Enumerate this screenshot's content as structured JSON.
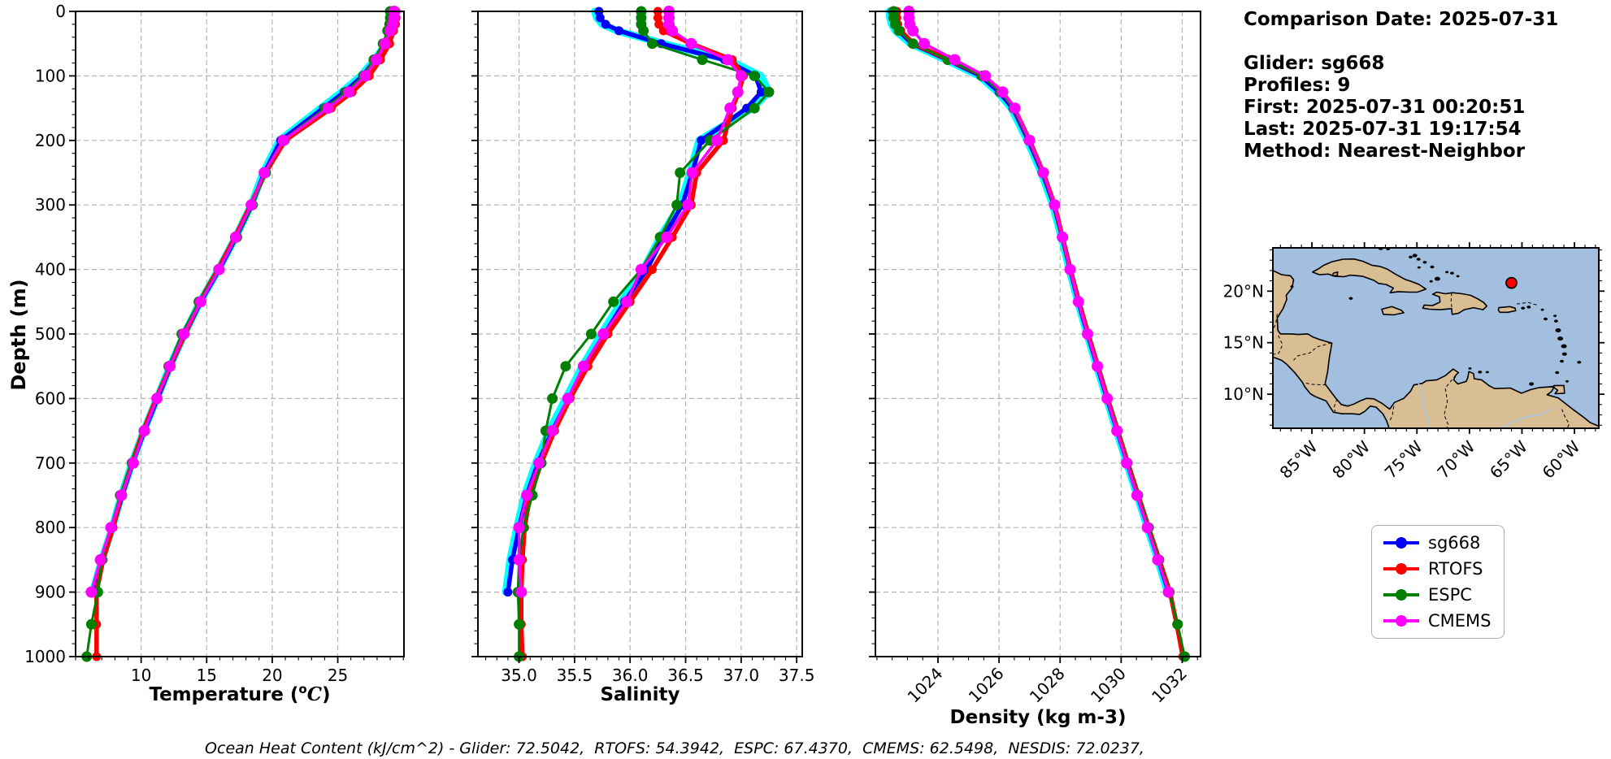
{
  "depth_axis_label": "Depth (m)",
  "info": {
    "lines": [
      "Comparison Date: 2025-07-31",
      "",
      "Glider: sg668",
      "Profiles: 9",
      "First: 2025-07-31 00:20:51",
      "Last: 2025-07-31 19:17:54",
      "Method: Nearest-Neighbor"
    ]
  },
  "footer": {
    "text": "Ocean Heat Content (kJ/cm^2) - Glider: 72.5042,  RTOFS: 54.3942,  ESPC: 67.4370,  CMEMS: 62.5498,  NESDIS: 72.0237,"
  },
  "legend": {
    "items": [
      {
        "label": "sg668",
        "color": "#0000ff"
      },
      {
        "label": "RTOFS",
        "color": "#ff0000"
      },
      {
        "label": "ESPC",
        "color": "#008000"
      },
      {
        "label": "CMEMS",
        "color": "#ff00ff"
      }
    ]
  },
  "depth_grids": {
    "glider": [
      0,
      10,
      20,
      30,
      50,
      75,
      100,
      125,
      150,
      200,
      250,
      300,
      350,
      400,
      450,
      500,
      550,
      600,
      650,
      700,
      750,
      800,
      850,
      900
    ],
    "model": [
      0,
      10,
      20,
      30,
      50,
      75,
      100,
      125,
      150,
      200,
      250,
      300,
      350,
      400,
      450,
      500,
      550,
      600,
      650,
      700,
      750,
      800,
      850,
      900,
      950,
      1000
    ]
  },
  "chart_data": [
    {
      "id": "temperature",
      "type": "line",
      "xlabel": "Temperature (°C)",
      "xlabel_parts": [
        {
          "t": "Temperature ("
        },
        {
          "t": "o",
          "style": "sup"
        },
        {
          "t": "C",
          "style": "it"
        },
        {
          "t": ")"
        }
      ],
      "ylabel": "Depth (m)",
      "xlim": [
        5.0,
        30.05
      ],
      "ylim": [
        0,
        1000
      ],
      "xticks": [
        10,
        15,
        20,
        25
      ],
      "xtick_labels": [
        "10",
        "15",
        "20",
        "25"
      ],
      "xtick_rotate": false,
      "xminor_step": 1,
      "yticks": [
        0,
        100,
        200,
        300,
        400,
        500,
        600,
        700,
        800,
        900,
        1000
      ],
      "ytick_labels": [
        "0",
        "100",
        "200",
        "300",
        "400",
        "500",
        "600",
        "700",
        "800",
        "900",
        "1000"
      ],
      "yminor_step": 20,
      "show_ytick_labels": true,
      "grid": true,
      "series": [
        {
          "name": "sg668-raw",
          "in_legend": false,
          "color": "#00ffff",
          "lw": 9,
          "mr": 0,
          "depth_grid": "glider",
          "values": [
            29.4,
            29.38,
            29.3,
            29.1,
            28.7,
            27.8,
            26.75,
            25.3,
            23.7,
            20.55,
            19.3,
            18.4,
            17.2,
            15.9,
            14.5,
            13.3,
            12.2,
            11.2,
            10.2,
            9.3,
            8.5,
            7.8,
            7.0,
            6.3
          ]
        },
        {
          "name": "sg668",
          "in_legend": true,
          "color": "#0000ff",
          "lw": 5.5,
          "mr": 5.5,
          "depth_grid": "glider",
          "values": [
            29.35,
            29.32,
            29.25,
            29.05,
            28.65,
            27.85,
            26.9,
            25.5,
            23.9,
            20.65,
            19.4,
            18.45,
            17.25,
            15.95,
            14.55,
            13.35,
            12.25,
            11.25,
            10.25,
            9.35,
            8.55,
            7.85,
            7.05,
            6.35
          ]
        },
        {
          "name": "RTOFS",
          "in_legend": true,
          "color": "#ff0000",
          "lw": 5.5,
          "mr": 5.5,
          "depth_grid": "model",
          "values": [
            29.45,
            29.45,
            29.4,
            29.25,
            28.95,
            28.25,
            27.4,
            26.1,
            24.5,
            21.0,
            19.5,
            18.35,
            17.15,
            15.85,
            14.45,
            13.35,
            12.2,
            11.15,
            10.15,
            9.3,
            8.5,
            7.85,
            7.1,
            6.6,
            6.6,
            6.6
          ]
        },
        {
          "name": "ESPC",
          "in_legend": true,
          "color": "#008000",
          "lw": 3,
          "mr": 6.5,
          "depth_grid": "model",
          "values": [
            29.0,
            29.0,
            28.95,
            28.8,
            28.45,
            27.75,
            26.95,
            25.65,
            24.05,
            20.8,
            19.5,
            18.5,
            17.3,
            15.9,
            14.4,
            13.1,
            12.1,
            11.2,
            10.2,
            9.3,
            8.4,
            7.7,
            7.0,
            6.7,
            6.2,
            5.85
          ]
        },
        {
          "name": "CMEMS",
          "in_legend": true,
          "color": "#ff00ff",
          "lw": 3.5,
          "mr": 7,
          "depth_grid": "glider",
          "values": [
            29.3,
            29.3,
            29.2,
            29.0,
            28.6,
            27.95,
            27.1,
            25.85,
            24.25,
            20.85,
            19.4,
            18.4,
            17.2,
            15.95,
            14.55,
            13.25,
            12.2,
            11.2,
            10.25,
            9.4,
            8.5,
            7.7,
            6.9,
            6.2
          ]
        }
      ]
    },
    {
      "id": "salinity",
      "type": "line",
      "xlabel": "Salinity",
      "xlabel_parts": [
        {
          "t": "Salinity"
        }
      ],
      "ylabel": "Depth (m)",
      "xlim": [
        34.63,
        37.55
      ],
      "ylim": [
        0,
        1000
      ],
      "xticks": [
        35.0,
        35.5,
        36.0,
        36.5,
        37.0,
        37.5
      ],
      "xtick_labels": [
        "35.0",
        "35.5",
        "36.0",
        "36.5",
        "37.0",
        "37.5"
      ],
      "xtick_rotate": false,
      "xminor_step": 0.1,
      "yticks": [
        0,
        100,
        200,
        300,
        400,
        500,
        600,
        700,
        800,
        900,
        1000
      ],
      "ytick_labels": [
        "0",
        "100",
        "200",
        "300",
        "400",
        "500",
        "600",
        "700",
        "800",
        "900",
        "1000"
      ],
      "yminor_step": 20,
      "show_ytick_labels": false,
      "grid": true,
      "series": [
        {
          "name": "sg668-raw",
          "in_legend": false,
          "color": "#00ffff",
          "lw": 9,
          "mr": 0,
          "depth_grid": "glider",
          "values": [
            35.68,
            35.7,
            35.75,
            35.88,
            36.3,
            36.88,
            37.18,
            37.25,
            37.1,
            36.62,
            36.54,
            36.45,
            36.27,
            36.12,
            35.92,
            35.74,
            35.57,
            35.42,
            35.27,
            35.15,
            35.05,
            34.98,
            34.92,
            34.88
          ]
        },
        {
          "name": "sg668",
          "in_legend": true,
          "color": "#0000ff",
          "lw": 5.5,
          "mr": 5.5,
          "depth_grid": "glider",
          "values": [
            35.72,
            35.73,
            35.78,
            35.9,
            36.28,
            36.85,
            37.13,
            37.18,
            37.05,
            36.64,
            36.56,
            36.47,
            36.3,
            36.15,
            35.95,
            35.77,
            35.6,
            35.45,
            35.3,
            35.17,
            35.07,
            35.0,
            34.94,
            34.9
          ]
        },
        {
          "name": "RTOFS",
          "in_legend": true,
          "color": "#ff0000",
          "lw": 5.5,
          "mr": 5.5,
          "depth_grid": "model",
          "values": [
            36.25,
            36.25,
            36.26,
            36.3,
            36.55,
            36.92,
            37.02,
            36.98,
            36.92,
            36.84,
            36.6,
            36.55,
            36.38,
            36.2,
            36.0,
            35.8,
            35.62,
            35.46,
            35.32,
            35.2,
            35.1,
            35.05,
            35.03,
            35.02,
            35.02,
            35.03
          ]
        },
        {
          "name": "ESPC",
          "in_legend": true,
          "color": "#008000",
          "lw": 3,
          "mr": 6.5,
          "depth_grid": "model",
          "values": [
            36.1,
            36.1,
            36.1,
            36.12,
            36.2,
            36.65,
            37.12,
            37.25,
            37.12,
            36.72,
            36.45,
            36.42,
            36.27,
            36.1,
            35.85,
            35.65,
            35.42,
            35.3,
            35.24,
            35.2,
            35.12,
            35.04,
            35.0,
            34.99,
            35.0,
            35.0
          ]
        },
        {
          "name": "CMEMS",
          "in_legend": true,
          "color": "#ff00ff",
          "lw": 3.5,
          "mr": 7,
          "depth_grid": "glider",
          "values": [
            36.35,
            36.35,
            36.35,
            36.38,
            36.55,
            36.88,
            37.0,
            36.97,
            36.9,
            36.78,
            36.56,
            36.52,
            36.33,
            36.1,
            35.97,
            35.76,
            35.58,
            35.44,
            35.3,
            35.18,
            35.07,
            35.0,
            35.0,
            35.02
          ]
        }
      ]
    },
    {
      "id": "density",
      "type": "line",
      "xlabel": "Density (kg m-3)",
      "xlabel_parts": [
        {
          "t": "Density (kg m-3)"
        }
      ],
      "ylabel": "Depth (m)",
      "xlim": [
        1021.95,
        1032.6
      ],
      "ylim": [
        0,
        1000
      ],
      "xticks": [
        1024,
        1026,
        1028,
        1030,
        1032
      ],
      "xtick_labels": [
        "1024",
        "1026",
        "1028",
        "1030",
        "1032"
      ],
      "xtick_rotate": true,
      "xminor_step": 0.5,
      "yticks": [
        0,
        100,
        200,
        300,
        400,
        500,
        600,
        700,
        800,
        900,
        1000
      ],
      "ytick_labels": [
        "0",
        "100",
        "200",
        "300",
        "400",
        "500",
        "600",
        "700",
        "800",
        "900",
        "1000"
      ],
      "yminor_step": 20,
      "show_ytick_labels": false,
      "grid": true,
      "series": [
        {
          "name": "sg668-raw",
          "in_legend": false,
          "color": "#00ffff",
          "lw": 9,
          "mr": 0,
          "depth_grid": "glider",
          "values": [
            1022.4,
            1022.42,
            1022.48,
            1022.6,
            1023.1,
            1024.25,
            1025.35,
            1025.95,
            1026.4,
            1026.92,
            1027.38,
            1027.76,
            1028.04,
            1028.3,
            1028.58,
            1028.88,
            1029.2,
            1029.52,
            1029.85,
            1030.18,
            1030.52,
            1030.86,
            1031.2,
            1031.52
          ]
        },
        {
          "name": "sg668",
          "in_legend": true,
          "color": "#0000ff",
          "lw": 5.5,
          "mr": 5.5,
          "depth_grid": "glider",
          "values": [
            1022.5,
            1022.52,
            1022.58,
            1022.7,
            1023.15,
            1024.3,
            1025.4,
            1026.0,
            1026.45,
            1026.96,
            1027.42,
            1027.8,
            1028.07,
            1028.33,
            1028.6,
            1028.9,
            1029.22,
            1029.54,
            1029.87,
            1030.2,
            1030.54,
            1030.88,
            1031.22,
            1031.55
          ]
        },
        {
          "name": "RTOFS",
          "in_legend": true,
          "color": "#ff0000",
          "lw": 5.5,
          "mr": 5.5,
          "depth_grid": "model",
          "values": [
            1022.65,
            1022.65,
            1022.68,
            1022.78,
            1023.2,
            1024.35,
            1025.5,
            1026.1,
            1026.5,
            1027.0,
            1027.45,
            1027.82,
            1028.08,
            1028.34,
            1028.62,
            1028.92,
            1029.24,
            1029.56,
            1029.89,
            1030.22,
            1030.56,
            1030.9,
            1031.25,
            1031.6,
            1031.82,
            1032.02
          ]
        },
        {
          "name": "ESPC",
          "in_legend": true,
          "color": "#008000",
          "lw": 3,
          "mr": 6.5,
          "depth_grid": "model",
          "values": [
            1022.55,
            1022.55,
            1022.6,
            1022.72,
            1023.18,
            1024.32,
            1025.45,
            1026.05,
            1026.48,
            1026.98,
            1027.43,
            1027.81,
            1028.07,
            1028.33,
            1028.6,
            1028.9,
            1029.22,
            1029.55,
            1029.88,
            1030.2,
            1030.55,
            1030.9,
            1031.24,
            1031.58,
            1031.85,
            1032.08
          ]
        },
        {
          "name": "CMEMS",
          "in_legend": true,
          "color": "#ff00ff",
          "lw": 3.5,
          "mr": 7,
          "depth_grid": "glider",
          "values": [
            1023.05,
            1023.05,
            1023.08,
            1023.18,
            1023.55,
            1024.55,
            1025.55,
            1026.12,
            1026.52,
            1027.0,
            1027.45,
            1027.82,
            1028.08,
            1028.33,
            1028.6,
            1028.9,
            1029.22,
            1029.54,
            1029.86,
            1030.18,
            1030.52,
            1030.86,
            1031.2,
            1031.55
          ]
        }
      ]
    }
  ],
  "map": {
    "extent": {
      "lon_min": -88.72,
      "lon_max": -57.68,
      "lat_min": 6.7,
      "lat_max": 24.2
    },
    "lon_ticks": [
      {
        "value": -85,
        "label": "85°W"
      },
      {
        "value": -80,
        "label": "80°W"
      },
      {
        "value": -75,
        "label": "75°W"
      },
      {
        "value": -70,
        "label": "70°W"
      },
      {
        "value": -65,
        "label": "65°W"
      },
      {
        "value": -60,
        "label": "60°W"
      }
    ],
    "lat_ticks": [
      {
        "value": 20,
        "label": "20°N"
      },
      {
        "value": 15,
        "label": "15°N"
      },
      {
        "value": 10,
        "label": "10°N"
      }
    ],
    "marker": {
      "lon": -66.0,
      "lat": 20.8,
      "color": "#ff0000"
    },
    "ocean_color": "#a3bfe0",
    "land_color": "#d9bd93"
  }
}
